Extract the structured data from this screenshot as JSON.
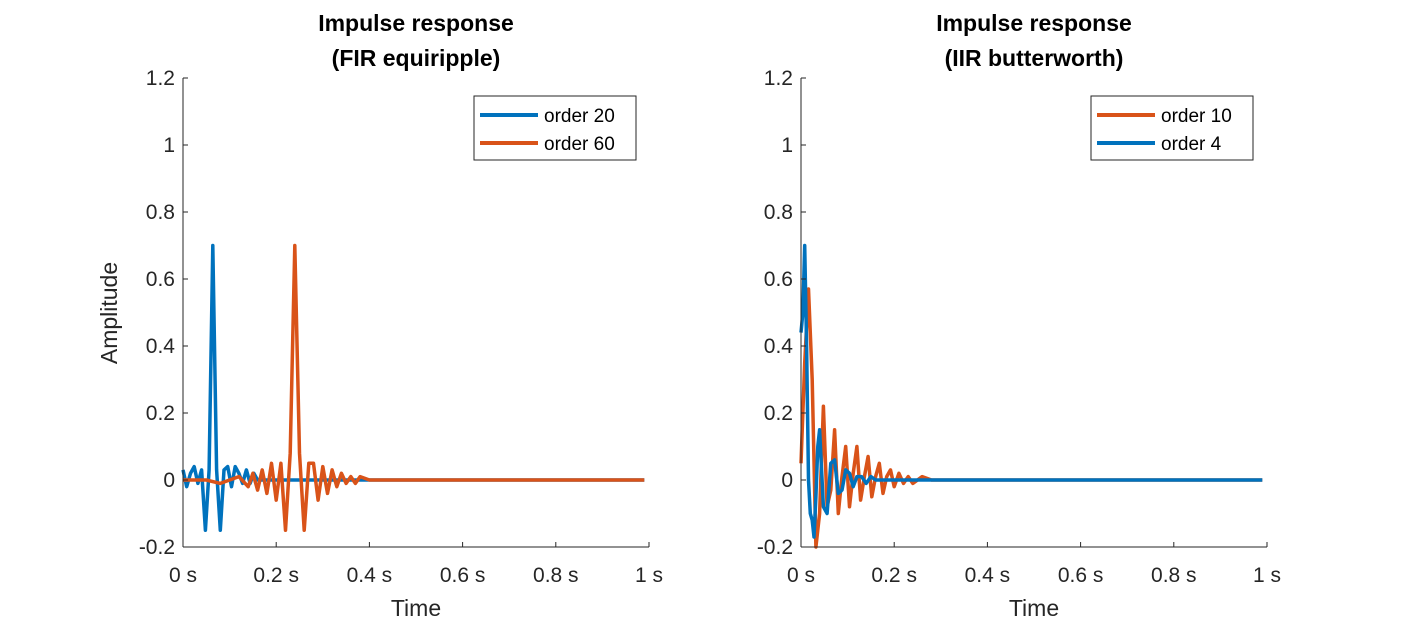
{
  "colors": {
    "blue": "#0072BD",
    "orange": "#D95319",
    "axis": "#262626"
  },
  "chart_data": [
    {
      "type": "line",
      "title": [
        "Impulse response",
        "(FIR equiripple)"
      ],
      "xlabel": "Time",
      "ylabel": "Amplitude",
      "xlim": [
        0,
        1
      ],
      "ylim": [
        -0.2,
        1.2
      ],
      "xticks": [
        0,
        0.2,
        0.4,
        0.6,
        0.8,
        1
      ],
      "xticklabels": [
        "0 s",
        "0.2 s",
        "0.4 s",
        "0.6 s",
        "0.8 s",
        "1 s"
      ],
      "yticks": [
        -0.2,
        0,
        0.2,
        0.4,
        0.6,
        0.8,
        1,
        1.2
      ],
      "yticklabels": [
        "-0.2",
        "0",
        "0.2",
        "0.4",
        "0.6",
        "0.8",
        "1",
        "1.2"
      ],
      "legend_position": "top-right",
      "series": [
        {
          "name": "order 20",
          "color": "#0072BD",
          "x": [
            0,
            0.008,
            0.016,
            0.024,
            0.032,
            0.04,
            0.048,
            0.056,
            0.064,
            0.072,
            0.08,
            0.088,
            0.096,
            0.104,
            0.112,
            0.12,
            0.128,
            0.136,
            0.144,
            0.152,
            0.16,
            0.17,
            0.2,
            0.3,
            0.4,
            0.5,
            0.6,
            0.7,
            0.8,
            0.9,
            0.99
          ],
          "y": [
            0.03,
            -0.02,
            0.02,
            0.04,
            -0.01,
            0.03,
            -0.15,
            0.03,
            0.7,
            0.03,
            -0.15,
            0.03,
            0.04,
            -0.02,
            0.04,
            0.02,
            -0.01,
            0.03,
            -0.01,
            0.02,
            0.0,
            0.0,
            0,
            0,
            0,
            0,
            0,
            0,
            0,
            0,
            0
          ]
        },
        {
          "name": "order 60",
          "color": "#D95319",
          "x": [
            0,
            0.05,
            0.08,
            0.1,
            0.12,
            0.14,
            0.15,
            0.16,
            0.17,
            0.18,
            0.19,
            0.2,
            0.21,
            0.22,
            0.23,
            0.24,
            0.25,
            0.26,
            0.27,
            0.28,
            0.29,
            0.3,
            0.31,
            0.32,
            0.33,
            0.34,
            0.35,
            0.36,
            0.37,
            0.38,
            0.4,
            0.45,
            0.6,
            0.8,
            0.99
          ],
          "y": [
            0,
            0,
            -0.01,
            0,
            0.01,
            -0.02,
            0.02,
            -0.03,
            0.03,
            -0.04,
            0.05,
            -0.06,
            0.05,
            -0.15,
            0.08,
            0.7,
            0.08,
            -0.15,
            0.05,
            0.05,
            -0.06,
            0.04,
            -0.04,
            0.03,
            -0.02,
            0.02,
            -0.01,
            0.01,
            -0.01,
            0.01,
            0,
            0,
            0,
            0,
            0
          ]
        }
      ]
    },
    {
      "type": "line",
      "title": [
        "Impulse response",
        "(IIR butterworth)"
      ],
      "xlabel": "Time",
      "ylabel": "",
      "xlim": [
        0,
        1
      ],
      "ylim": [
        -0.2,
        1.2
      ],
      "xticks": [
        0,
        0.2,
        0.4,
        0.6,
        0.8,
        1
      ],
      "xticklabels": [
        "0 s",
        "0.2 s",
        "0.4 s",
        "0.6 s",
        "0.8 s",
        "1 s"
      ],
      "yticks": [
        -0.2,
        0,
        0.2,
        0.4,
        0.6,
        0.8,
        1,
        1.2
      ],
      "yticklabels": [
        "-0.2",
        "0",
        "0.2",
        "0.4",
        "0.6",
        "0.8",
        "1",
        "1.2"
      ],
      "legend_position": "top-right",
      "series": [
        {
          "name": "order 10",
          "color": "#D95319",
          "x": [
            0,
            0.008,
            0.016,
            0.024,
            0.032,
            0.04,
            0.048,
            0.056,
            0.064,
            0.072,
            0.08,
            0.088,
            0.096,
            0.104,
            0.112,
            0.12,
            0.128,
            0.136,
            0.144,
            0.152,
            0.16,
            0.168,
            0.176,
            0.184,
            0.192,
            0.2,
            0.21,
            0.22,
            0.23,
            0.24,
            0.26,
            0.28,
            0.32,
            0.4,
            0.6,
            0.8,
            0.99
          ],
          "y": [
            0.05,
            0.35,
            0.57,
            0.3,
            -0.2,
            -0.1,
            0.22,
            -0.08,
            -0.03,
            0.15,
            -0.1,
            0.01,
            0.1,
            -0.08,
            0.02,
            0.1,
            -0.06,
            0.01,
            0.07,
            -0.05,
            0.01,
            0.05,
            -0.04,
            0.01,
            0.03,
            -0.02,
            0.02,
            -0.01,
            0.01,
            -0.01,
            0.01,
            0,
            0,
            0,
            0,
            0,
            0
          ]
        },
        {
          "name": "order 4",
          "color": "#0072BD",
          "x": [
            0,
            0.004,
            0.008,
            0.012,
            0.016,
            0.02,
            0.024,
            0.028,
            0.032,
            0.036,
            0.04,
            0.048,
            0.056,
            0.064,
            0.072,
            0.08,
            0.088,
            0.096,
            0.104,
            0.112,
            0.12,
            0.13,
            0.14,
            0.15,
            0.16,
            0.18,
            0.2,
            0.3,
            0.4,
            0.6,
            0.8,
            0.99
          ],
          "y": [
            0.44,
            0.5,
            0.7,
            0.4,
            0.0,
            -0.1,
            -0.12,
            -0.17,
            -0.05,
            0.1,
            0.15,
            -0.08,
            -0.1,
            0.05,
            0.06,
            -0.04,
            -0.03,
            0.03,
            0.02,
            -0.02,
            0.01,
            0.01,
            -0.01,
            0.01,
            0.0,
            0,
            0,
            0,
            0,
            0,
            0,
            0
          ]
        }
      ]
    }
  ]
}
